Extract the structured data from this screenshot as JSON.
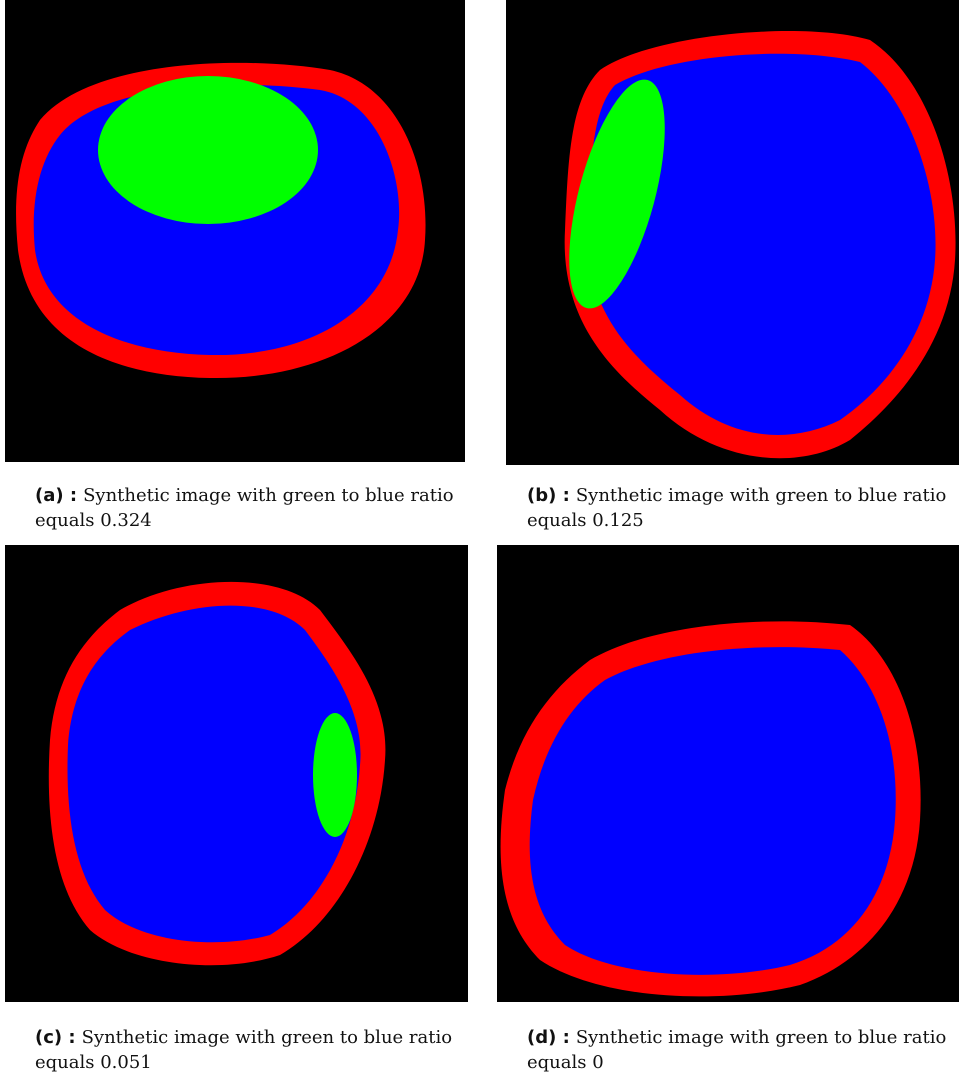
{
  "panels": [
    {
      "label": "(a) :",
      "caption": "Synthetic image with green to blue ratio equals 0.324"
    },
    {
      "label": "(b) :",
      "caption": "Synthetic image with green to blue ratio equals 0.125"
    },
    {
      "label": "(c) :",
      "caption": "Synthetic image with green to blue ratio equals 0.051"
    },
    {
      "label": "(d) :",
      "caption": "Synthetic image with green to blue ratio equals 0"
    }
  ]
}
